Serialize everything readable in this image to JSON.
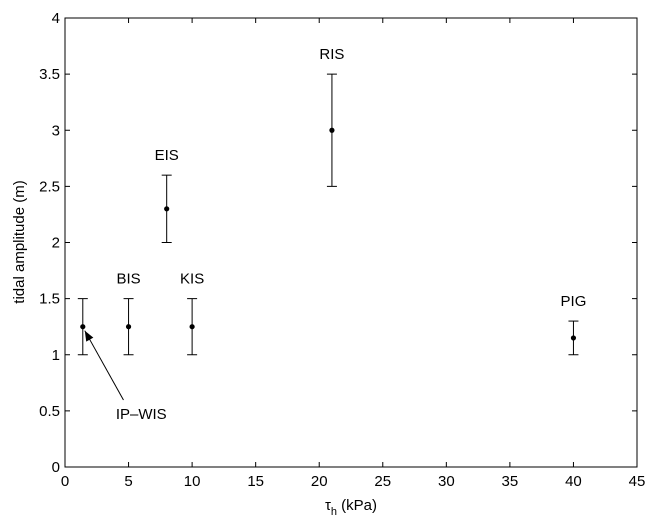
{
  "chart_data": {
    "type": "scatter",
    "title": "",
    "xlabel": "τ",
    "xlabel_sub": "h",
    "xlabel_unit": " (kPa)",
    "ylabel": "tidal amplitude (m)",
    "xlim": [
      0,
      45
    ],
    "ylim": [
      0,
      4
    ],
    "xticks": [
      "0",
      "5",
      "10",
      "15",
      "20",
      "25",
      "30",
      "35",
      "40",
      "45"
    ],
    "yticks": [
      "0",
      "0.5",
      "1",
      "1.5",
      "2",
      "2.5",
      "3",
      "3.5",
      "4"
    ],
    "grid": false,
    "points": [
      {
        "label": "IP–WIS",
        "x": 1.4,
        "y": 1.25,
        "ylow": 1.0,
        "yhigh": 1.5
      },
      {
        "label": "BIS",
        "x": 5,
        "y": 1.25,
        "ylow": 1.0,
        "yhigh": 1.5
      },
      {
        "label": "EIS",
        "x": 8,
        "y": 2.3,
        "ylow": 2.0,
        "yhigh": 2.6
      },
      {
        "label": "KIS",
        "x": 10,
        "y": 1.25,
        "ylow": 1.0,
        "yhigh": 1.5
      },
      {
        "label": "RIS",
        "x": 21,
        "y": 3.0,
        "ylow": 2.5,
        "yhigh": 3.5
      },
      {
        "label": "PIG",
        "x": 40,
        "y": 1.15,
        "ylow": 1.0,
        "yhigh": 1.3
      }
    ]
  }
}
